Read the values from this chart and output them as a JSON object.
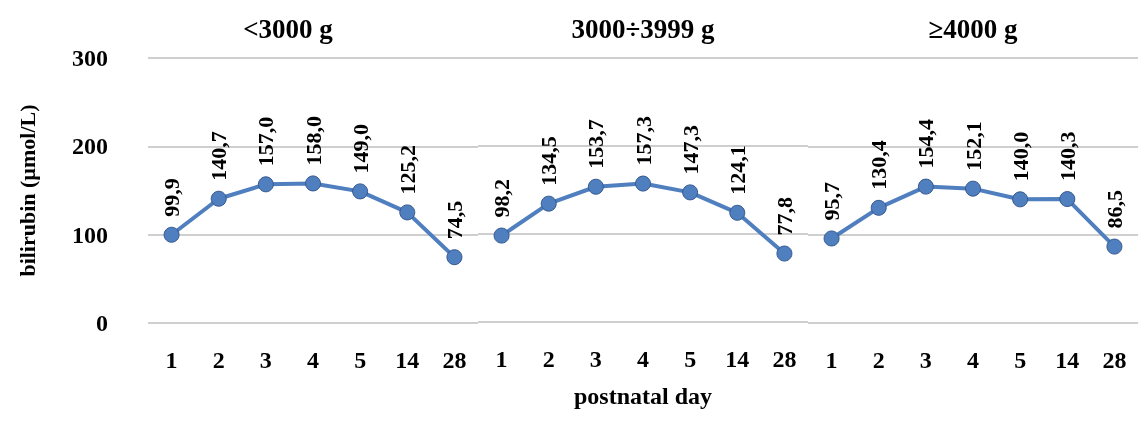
{
  "chart_data": [
    {
      "type": "line",
      "title": "<3000 g",
      "ylabel": "bilirubin (µmol/L)",
      "categories": [
        "1",
        "2",
        "3",
        "4",
        "5",
        "14",
        "28"
      ],
      "ylim": [
        0,
        300
      ],
      "yticks": [
        0,
        100,
        200,
        300
      ],
      "grid": "y",
      "marker": "circle",
      "line_style": "solid",
      "series": [
        {
          "color": "#4f7fbf",
          "values": [
            99.9,
            140.7,
            157.0,
            158.0,
            149.0,
            125.2,
            74.5
          ],
          "value_labels": [
            "99,9",
            "140,7",
            "157,0",
            "158,0",
            "149,0",
            "125,2",
            "74,5"
          ]
        }
      ]
    },
    {
      "type": "line",
      "title": "3000÷3999 g",
      "xlabel": "postnatal day",
      "categories": [
        "1",
        "2",
        "3",
        "4",
        "5",
        "14",
        "28"
      ],
      "ylim": [
        0,
        300
      ],
      "yticks": [
        0,
        100,
        200,
        300
      ],
      "grid": "y",
      "tick_labels": "x",
      "marker": "circle",
      "line_style": "solid",
      "series": [
        {
          "color": "#4f7fbf",
          "values": [
            98.2,
            134.5,
            153.7,
            157.3,
            147.3,
            124.1,
            77.8
          ],
          "value_labels": [
            "98,2",
            "134,5",
            "153,7",
            "157,3",
            "147,3",
            "124,1",
            "77,8"
          ]
        }
      ]
    },
    {
      "type": "line",
      "title": "≥4000 g",
      "categories": [
        "1",
        "2",
        "3",
        "4",
        "5",
        "14",
        "28"
      ],
      "ylim": [
        0,
        300
      ],
      "yticks": [
        0,
        100,
        200,
        300
      ],
      "grid": "y",
      "tick_labels": "x",
      "marker": "circle",
      "line_style": "solid",
      "series": [
        {
          "color": "#4f7fbf",
          "values": [
            95.7,
            130.4,
            154.4,
            152.1,
            140.0,
            140.3,
            86.5
          ],
          "value_labels": [
            "95,7",
            "130,4",
            "154,4",
            "152,1",
            "140,0",
            "140,3",
            "86,5"
          ]
        }
      ]
    }
  ]
}
